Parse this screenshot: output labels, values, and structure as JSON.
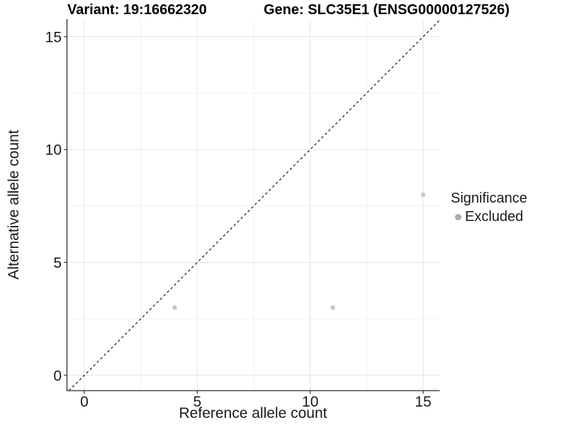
{
  "header": {
    "variant_title": "Variant: 19:16662320",
    "gene_title": "Gene: SLC35E1 (ENSG00000127526)"
  },
  "chart_data": {
    "type": "scatter",
    "xlabel": "Reference allele count",
    "ylabel": "Alternative allele count",
    "x_ticks": [
      0,
      5,
      10,
      15
    ],
    "y_ticks": [
      0,
      5,
      10,
      15
    ],
    "minor_ticks": [
      2.5,
      7.5,
      12.5
    ],
    "xlim": [
      -0.75,
      15.75
    ],
    "ylim": [
      -0.75,
      15.75
    ],
    "grid": "major and minor, light gray on white panel",
    "identity_line": {
      "style": "dashed",
      "slope": 1,
      "intercept": 0,
      "color": "#000000"
    },
    "series": [
      {
        "name": "Excluded",
        "color": "#c6c6c6",
        "point_radius": 3.2,
        "points": [
          [
            4,
            3
          ],
          [
            11,
            3
          ],
          [
            15,
            8
          ]
        ]
      }
    ],
    "legend": {
      "title": "Significance",
      "position": "right",
      "entries": [
        {
          "label": "Excluded",
          "color": "#ababab"
        }
      ]
    },
    "colors": {
      "major_grid": "#e4e4e4",
      "minor_grid": "#f1f1f1",
      "axis_line": "#4a4a4a",
      "tick_mark": "#333333",
      "tick_label": "#1a1a1a"
    }
  }
}
